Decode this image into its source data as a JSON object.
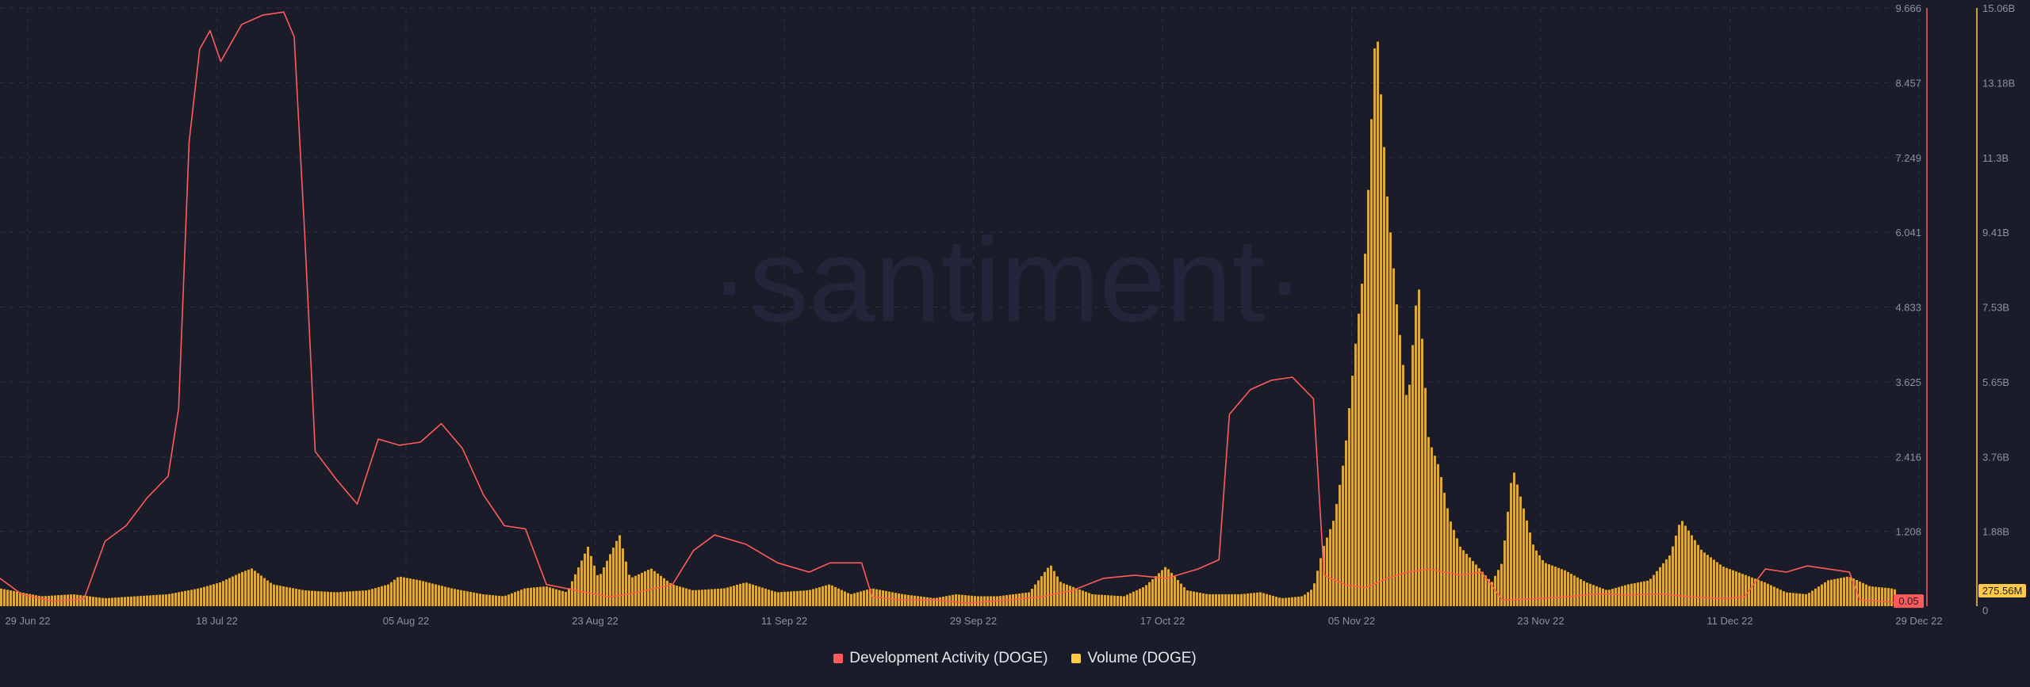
{
  "watermark": "·santiment·",
  "legend": [
    {
      "label": "Development Activity (DOGE)",
      "color": "#ff5b5b"
    },
    {
      "label": "Volume (DOGE)",
      "color": "#ffcb47"
    }
  ],
  "colors": {
    "background": "#1a1c29",
    "grid": "#2c3045",
    "text": "#8b90a4",
    "dev_line": "#ff5b5b",
    "volume_bars": "#d9a93a"
  },
  "chart_data": {
    "type": "bar",
    "x_ticks": [
      "29 Jun 22",
      "18 Jul 22",
      "05 Aug 22",
      "23 Aug 22",
      "11 Sep 22",
      "29 Sep 22",
      "17 Oct 22",
      "05 Nov 22",
      "23 Nov 22",
      "11 Dec 22",
      "29 Dec 22"
    ],
    "x_range": [
      "2022-06-29",
      "2022-12-29"
    ],
    "y_left": {
      "ticks": [
        "9.666",
        "8.457",
        "7.249",
        "6.041",
        "4.833",
        "3.625",
        "2.416",
        "1.208"
      ],
      "range": [
        0,
        9.666
      ],
      "current_value_label": "0.05"
    },
    "y_right": {
      "ticks": [
        "15.06B",
        "13.18B",
        "11.3B",
        "9.41B",
        "7.53B",
        "5.65B",
        "3.76B",
        "1.88B",
        "0"
      ],
      "range": [
        0,
        15.06
      ],
      "unit": "B",
      "current_value_label": "275.56M"
    },
    "series": [
      {
        "name": "Development Activity (DOGE)",
        "type": "line",
        "axis": "left",
        "points": [
          [
            "2022-06-29",
            0.45
          ],
          [
            "2022-07-01",
            0.2
          ],
          [
            "2022-07-04",
            0.08
          ],
          [
            "2022-07-07",
            0.12
          ],
          [
            "2022-07-09",
            1.05
          ],
          [
            "2022-07-11",
            1.3
          ],
          [
            "2022-07-13",
            1.75
          ],
          [
            "2022-07-15",
            2.1
          ],
          [
            "2022-07-16",
            3.2
          ],
          [
            "2022-07-17",
            7.5
          ],
          [
            "2022-07-18",
            9.0
          ],
          [
            "2022-07-19",
            9.3
          ],
          [
            "2022-07-20",
            8.8
          ],
          [
            "2022-07-22",
            9.4
          ],
          [
            "2022-07-24",
            9.55
          ],
          [
            "2022-07-26",
            9.6
          ],
          [
            "2022-07-27",
            9.2
          ],
          [
            "2022-07-28",
            6.0
          ],
          [
            "2022-07-29",
            2.5
          ],
          [
            "2022-07-31",
            2.05
          ],
          [
            "2022-08-02",
            1.65
          ],
          [
            "2022-08-04",
            2.7
          ],
          [
            "2022-08-06",
            2.6
          ],
          [
            "2022-08-08",
            2.65
          ],
          [
            "2022-08-10",
            2.95
          ],
          [
            "2022-08-12",
            2.55
          ],
          [
            "2022-08-14",
            1.8
          ],
          [
            "2022-08-16",
            1.3
          ],
          [
            "2022-08-18",
            1.25
          ],
          [
            "2022-08-20",
            0.35
          ],
          [
            "2022-08-23",
            0.25
          ],
          [
            "2022-08-26",
            0.15
          ],
          [
            "2022-08-28",
            0.2
          ],
          [
            "2022-09-01",
            0.35
          ],
          [
            "2022-09-03",
            0.9
          ],
          [
            "2022-09-05",
            1.15
          ],
          [
            "2022-09-08",
            1.0
          ],
          [
            "2022-09-11",
            0.7
          ],
          [
            "2022-09-14",
            0.55
          ],
          [
            "2022-09-16",
            0.7
          ],
          [
            "2022-09-19",
            0.7
          ],
          [
            "2022-09-20",
            0.15
          ],
          [
            "2022-09-23",
            0.1
          ],
          [
            "2022-09-26",
            0.1
          ],
          [
            "2022-09-29",
            0.05
          ],
          [
            "2022-10-03",
            0.1
          ],
          [
            "2022-10-06",
            0.15
          ],
          [
            "2022-10-09",
            0.25
          ],
          [
            "2022-10-12",
            0.45
          ],
          [
            "2022-10-15",
            0.5
          ],
          [
            "2022-10-18",
            0.45
          ],
          [
            "2022-10-21",
            0.6
          ],
          [
            "2022-10-23",
            0.75
          ],
          [
            "2022-10-24",
            3.1
          ],
          [
            "2022-10-26",
            3.5
          ],
          [
            "2022-10-28",
            3.65
          ],
          [
            "2022-10-30",
            3.7
          ],
          [
            "2022-11-01",
            3.35
          ],
          [
            "2022-11-02",
            0.5
          ],
          [
            "2022-11-04",
            0.35
          ],
          [
            "2022-11-06",
            0.3
          ],
          [
            "2022-11-08",
            0.45
          ],
          [
            "2022-11-10",
            0.55
          ],
          [
            "2022-11-12",
            0.6
          ],
          [
            "2022-11-15",
            0.5
          ],
          [
            "2022-11-17",
            0.55
          ],
          [
            "2022-11-19",
            0.1
          ],
          [
            "2022-11-22",
            0.12
          ],
          [
            "2022-11-25",
            0.15
          ],
          [
            "2022-11-28",
            0.2
          ],
          [
            "2022-12-01",
            0.18
          ],
          [
            "2022-12-04",
            0.2
          ],
          [
            "2022-12-07",
            0.15
          ],
          [
            "2022-12-10",
            0.12
          ],
          [
            "2022-12-12",
            0.15
          ],
          [
            "2022-12-14",
            0.6
          ],
          [
            "2022-12-16",
            0.55
          ],
          [
            "2022-12-18",
            0.65
          ],
          [
            "2022-12-20",
            0.6
          ],
          [
            "2022-12-22",
            0.55
          ],
          [
            "2022-12-23",
            0.1
          ],
          [
            "2022-12-25",
            0.08
          ],
          [
            "2022-12-27",
            0.05
          ],
          [
            "2022-12-29",
            0.05
          ]
        ]
      },
      {
        "name": "Volume (DOGE)",
        "type": "bar",
        "axis": "right",
        "unit": "B",
        "points": [
          [
            "2022-06-29",
            0.45
          ],
          [
            "2022-07-03",
            0.25
          ],
          [
            "2022-07-06",
            0.3
          ],
          [
            "2022-07-09",
            0.2
          ],
          [
            "2022-07-12",
            0.25
          ],
          [
            "2022-07-15",
            0.3
          ],
          [
            "2022-07-18",
            0.45
          ],
          [
            "2022-07-20",
            0.6
          ],
          [
            "2022-07-22",
            0.85
          ],
          [
            "2022-07-23",
            0.95
          ],
          [
            "2022-07-25",
            0.55
          ],
          [
            "2022-07-28",
            0.4
          ],
          [
            "2022-07-31",
            0.35
          ],
          [
            "2022-08-03",
            0.4
          ],
          [
            "2022-08-05",
            0.55
          ],
          [
            "2022-08-06",
            0.75
          ],
          [
            "2022-08-08",
            0.65
          ],
          [
            "2022-08-11",
            0.45
          ],
          [
            "2022-08-14",
            0.3
          ],
          [
            "2022-08-16",
            0.25
          ],
          [
            "2022-08-18",
            0.45
          ],
          [
            "2022-08-20",
            0.5
          ],
          [
            "2022-08-22",
            0.35
          ],
          [
            "2022-08-24",
            1.5
          ],
          [
            "2022-08-25",
            0.7
          ],
          [
            "2022-08-27",
            1.8
          ],
          [
            "2022-08-28",
            0.7
          ],
          [
            "2022-08-30",
            0.95
          ],
          [
            "2022-09-01",
            0.55
          ],
          [
            "2022-09-03",
            0.4
          ],
          [
            "2022-09-06",
            0.45
          ],
          [
            "2022-09-08",
            0.6
          ],
          [
            "2022-09-11",
            0.35
          ],
          [
            "2022-09-14",
            0.4
          ],
          [
            "2022-09-16",
            0.55
          ],
          [
            "2022-09-18",
            0.3
          ],
          [
            "2022-09-20",
            0.45
          ],
          [
            "2022-09-23",
            0.3
          ],
          [
            "2022-09-26",
            0.2
          ],
          [
            "2022-09-28",
            0.3
          ],
          [
            "2022-09-30",
            0.25
          ],
          [
            "2022-10-02",
            0.25
          ],
          [
            "2022-10-05",
            0.35
          ],
          [
            "2022-10-07",
            1.05
          ],
          [
            "2022-10-08",
            0.6
          ],
          [
            "2022-10-11",
            0.3
          ],
          [
            "2022-10-14",
            0.25
          ],
          [
            "2022-10-16",
            0.5
          ],
          [
            "2022-10-18",
            1.0
          ],
          [
            "2022-10-20",
            0.4
          ],
          [
            "2022-10-22",
            0.3
          ],
          [
            "2022-10-25",
            0.3
          ],
          [
            "2022-10-27",
            0.35
          ],
          [
            "2022-10-29",
            0.2
          ],
          [
            "2022-10-31",
            0.25
          ],
          [
            "2022-11-01",
            0.45
          ],
          [
            "2022-11-02",
            1.5
          ],
          [
            "2022-11-03",
            2.2
          ],
          [
            "2022-11-04",
            3.8
          ],
          [
            "2022-11-05",
            6.5
          ],
          [
            "2022-11-06",
            9.0
          ],
          [
            "2022-11-07",
            14.9
          ],
          [
            "2022-11-08",
            10.5
          ],
          [
            "2022-11-09",
            7.5
          ],
          [
            "2022-11-10",
            5.0
          ],
          [
            "2022-11-11",
            8.3
          ],
          [
            "2022-11-12",
            4.2
          ],
          [
            "2022-11-13",
            3.5
          ],
          [
            "2022-11-14",
            2.2
          ],
          [
            "2022-11-15",
            1.5
          ],
          [
            "2022-11-16",
            1.2
          ],
          [
            "2022-11-17",
            0.9
          ],
          [
            "2022-11-18",
            0.6
          ],
          [
            "2022-11-19",
            1.1
          ],
          [
            "2022-11-20",
            3.5
          ],
          [
            "2022-11-21",
            2.5
          ],
          [
            "2022-11-22",
            1.5
          ],
          [
            "2022-11-23",
            1.1
          ],
          [
            "2022-11-25",
            0.9
          ],
          [
            "2022-11-27",
            0.6
          ],
          [
            "2022-11-29",
            0.4
          ],
          [
            "2022-12-01",
            0.55
          ],
          [
            "2022-12-03",
            0.65
          ],
          [
            "2022-12-05",
            1.3
          ],
          [
            "2022-12-06",
            2.2
          ],
          [
            "2022-12-08",
            1.4
          ],
          [
            "2022-12-10",
            1.0
          ],
          [
            "2022-12-12",
            0.8
          ],
          [
            "2022-12-14",
            0.6
          ],
          [
            "2022-12-16",
            0.35
          ],
          [
            "2022-12-18",
            0.3
          ],
          [
            "2022-12-20",
            0.65
          ],
          [
            "2022-12-22",
            0.75
          ],
          [
            "2022-12-24",
            0.5
          ],
          [
            "2022-12-26",
            0.45
          ],
          [
            "2022-12-28",
            0.3
          ],
          [
            "2022-12-29",
            0.28
          ]
        ]
      }
    ],
    "grid": true,
    "legend_position": "bottom-center"
  }
}
